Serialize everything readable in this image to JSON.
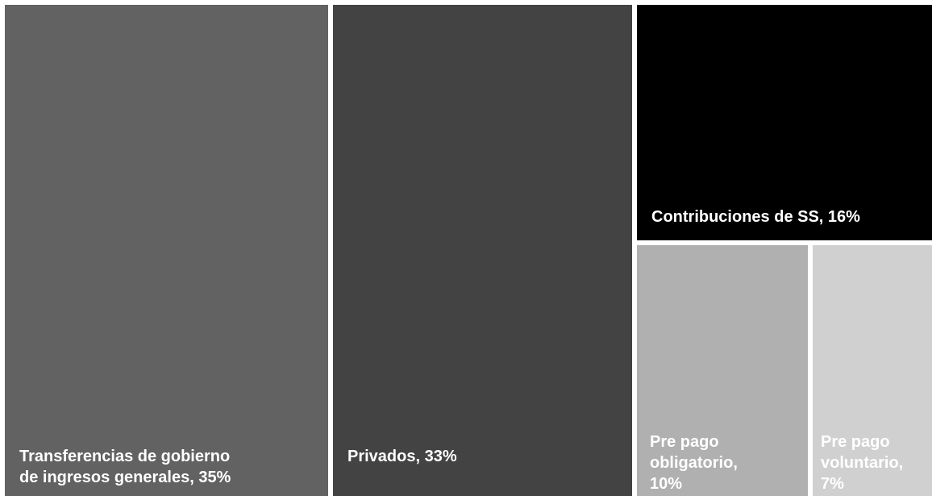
{
  "chart_data": {
    "type": "treemap",
    "title": "",
    "unit": "%",
    "items": [
      {
        "label": "Transferencias de gobierno\nde ingresos generales, 35%",
        "category": "Transferencias de gobierno de ingresos generales",
        "value": 35,
        "color": "#626262"
      },
      {
        "label": "Privados, 33%",
        "category": "Privados",
        "value": 33,
        "color": "#434343"
      },
      {
        "label": "Contribuciones de SS, 16%",
        "category": "Contribuciones de SS",
        "value": 16,
        "color": "#000000"
      },
      {
        "label": "Pre pago\nobligatorio,\n10%",
        "category": "Pre pago obligatorio",
        "value": 10,
        "color": "#b0b0b0"
      },
      {
        "label": "Pre pago\nvoluntario,\n7%",
        "category": "Pre pago voluntario",
        "value": 7,
        "color": "#d0d0d0"
      }
    ]
  }
}
